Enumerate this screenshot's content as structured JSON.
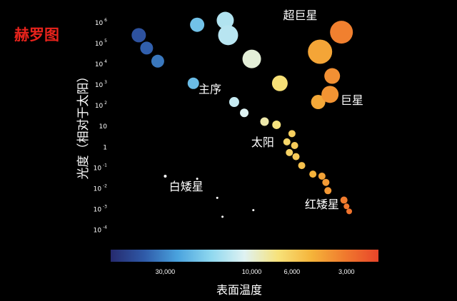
{
  "chart_data": {
    "type": "scatter",
    "title": "赫罗图",
    "xlabel": "表面温度",
    "ylabel": "光度（相对于太阳）",
    "x_scale": "log-reversed",
    "y_scale": "log",
    "xlim": [
      60000,
      2000
    ],
    "ylim": [
      3.2e-05,
      3000000
    ],
    "x_ticks": [
      {
        "value": 30000,
        "label": "30,000"
      },
      {
        "value": 10000,
        "label": "10,000"
      },
      {
        "value": 6000,
        "label": "6,000"
      },
      {
        "value": 3000,
        "label": "3,000"
      }
    ],
    "y_ticks": [
      {
        "value": 1000000,
        "base": "10",
        "exp": "6"
      },
      {
        "value": 100000,
        "base": "10",
        "exp": "5"
      },
      {
        "value": 10000,
        "base": "10",
        "exp": "4"
      },
      {
        "value": 1000,
        "base": "10",
        "exp": "3"
      },
      {
        "value": 100,
        "base": "10",
        "exp": "2"
      },
      {
        "value": 10,
        "base": "10",
        "exp": ""
      },
      {
        "value": 1,
        "base": "1",
        "exp": ""
      },
      {
        "value": 0.1,
        "base": "10",
        "exp": "-1"
      },
      {
        "value": 0.01,
        "base": "10",
        "exp": "-2"
      },
      {
        "value": 0.001,
        "base": "10",
        "exp": "-3"
      },
      {
        "value": 0.0001,
        "base": "10",
        "exp": "-4"
      }
    ],
    "grid": false,
    "colorbar": {
      "colors": [
        "#262a6e",
        "#2f5aa8",
        "#4aa3de",
        "#8fd8ef",
        "#dff2f2",
        "#f7e27a",
        "#f5b43a",
        "#f07a2e",
        "#e8452a"
      ]
    },
    "series": [
      {
        "name": "超巨星",
        "color_mode": "temperature",
        "points": [
          {
            "x": 20000,
            "y": 800000,
            "r": 10
          },
          {
            "x": 14000,
            "y": 1300000,
            "r": 12
          },
          {
            "x": 10000,
            "y": 18000,
            "r": 13
          },
          {
            "x": 7000,
            "y": 1200,
            "r": 11
          },
          {
            "x": 4200,
            "y": 40000,
            "r": 17
          },
          {
            "x": 3200,
            "y": 350000,
            "r": 16
          },
          {
            "x": 13500,
            "y": 250000,
            "r": 14
          }
        ]
      },
      {
        "name": "巨星",
        "color_mode": "temperature",
        "points": [
          {
            "x": 4300,
            "y": 150,
            "r": 10
          },
          {
            "x": 3700,
            "y": 350,
            "r": 12
          },
          {
            "x": 3600,
            "y": 2700,
            "r": 11
          }
        ]
      },
      {
        "name": "主序",
        "color_mode": "temperature",
        "points": [
          {
            "x": 42000,
            "y": 250000,
            "r": 10
          },
          {
            "x": 38000,
            "y": 60000,
            "r": 9
          },
          {
            "x": 33000,
            "y": 14000,
            "r": 9
          },
          {
            "x": 21000,
            "y": 1200,
            "r": 8
          },
          {
            "x": 12500,
            "y": 150,
            "r": 7
          },
          {
            "x": 11000,
            "y": 45,
            "r": 6
          },
          {
            "x": 8500,
            "y": 17,
            "r": 6
          },
          {
            "x": 7300,
            "y": 12,
            "r": 6
          },
          {
            "x": 6000,
            "y": 4.5,
            "r": 5
          },
          {
            "x": 6400,
            "y": 1.8,
            "r": 5
          },
          {
            "x": 5800,
            "y": 1.2,
            "r": 5
          },
          {
            "x": 6200,
            "y": 0.55,
            "r": 5
          },
          {
            "x": 5700,
            "y": 0.35,
            "r": 5
          },
          {
            "x": 5300,
            "y": 0.13,
            "r": 5
          },
          {
            "x": 4600,
            "y": 0.05,
            "r": 5
          },
          {
            "x": 4100,
            "y": 0.04,
            "r": 5
          },
          {
            "x": 3900,
            "y": 0.02,
            "r": 5
          },
          {
            "x": 3800,
            "y": 0.008,
            "r": 5
          },
          {
            "x": 3100,
            "y": 0.0028,
            "r": 5
          },
          {
            "x": 3000,
            "y": 0.0014,
            "r": 4
          },
          {
            "x": 2900,
            "y": 0.0008,
            "r": 4
          }
        ]
      },
      {
        "name": "红矮星",
        "color_mode": "temperature",
        "points": []
      },
      {
        "name": "白矮星",
        "color_mode": "white",
        "points": [
          {
            "x": 30000,
            "y": 0.04,
            "r": 2
          },
          {
            "x": 20000,
            "y": 0.03,
            "r": 1.5
          },
          {
            "x": 15500,
            "y": 0.0036,
            "r": 1.5
          },
          {
            "x": 9800,
            "y": 0.00092,
            "r": 1.5
          },
          {
            "x": 14500,
            "y": 0.00044,
            "r": 1.5
          }
        ]
      }
    ],
    "annotations": [
      {
        "text": "超巨星",
        "x": 5400,
        "y": 1500000
      },
      {
        "text": "巨星",
        "x": 2800,
        "y": 120
      },
      {
        "text": "主序",
        "x": 17000,
        "y": 400
      },
      {
        "text": "太阳",
        "x": 8700,
        "y": 1.1
      },
      {
        "text": "白矮星",
        "x": 23000,
        "y": 0.0083
      },
      {
        "text": "红矮星",
        "x": 4100,
        "y": 0.00112
      }
    ]
  }
}
